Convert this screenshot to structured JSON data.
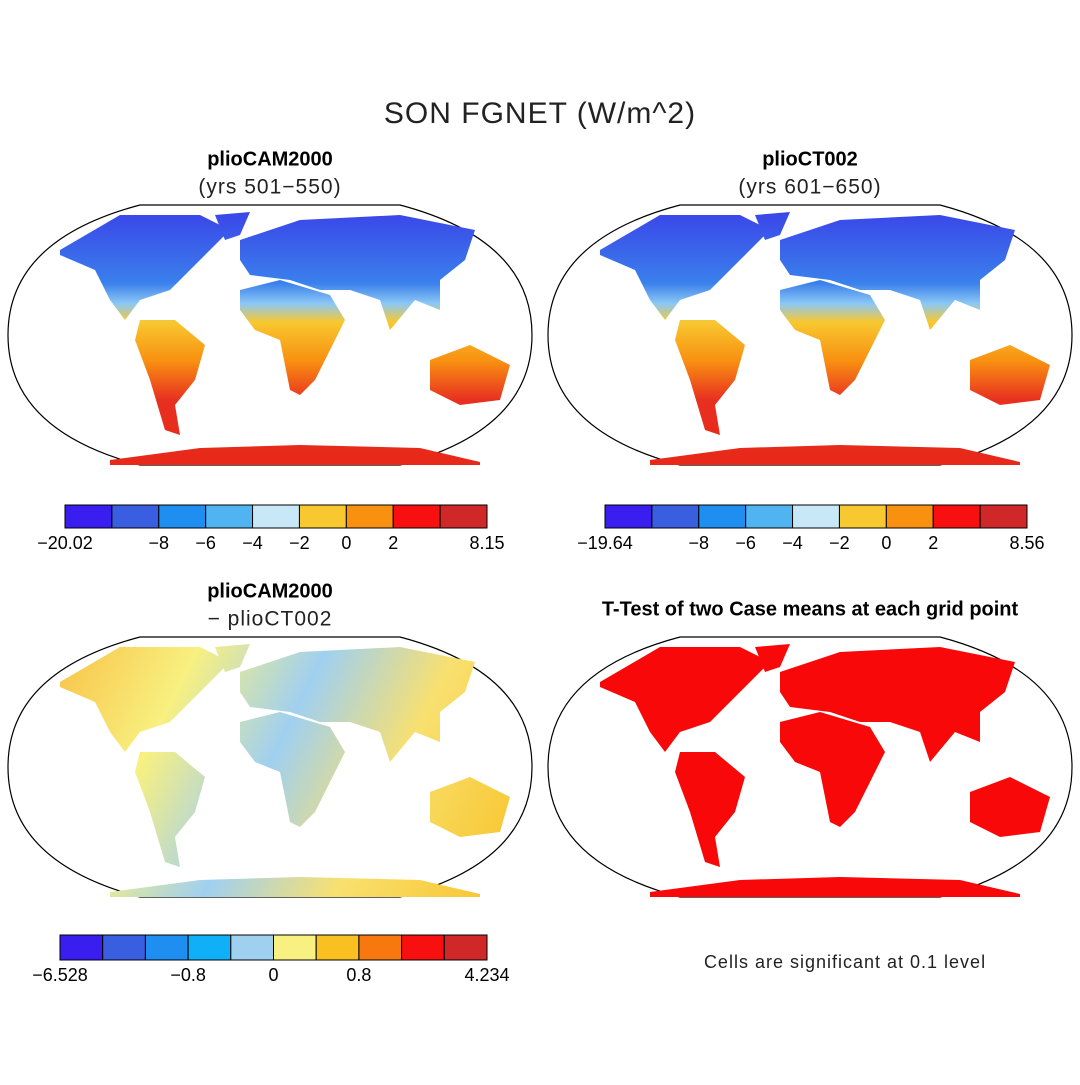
{
  "title": "SON FGNET (W/m^2)",
  "panels": [
    {
      "title": "plioCAM2000",
      "subtitle": "(yrs 501−550)",
      "colorbar": {
        "colors": [
          "#3a1ef0",
          "#3a5ee0",
          "#1e8ef0",
          "#50b4f0",
          "#c8e8f8",
          "#f8c830",
          "#f89010",
          "#f81010",
          "#d02828"
        ],
        "labels": [
          "−20.02",
          null,
          "−8",
          "−6",
          "−4",
          "−2",
          "0",
          "2",
          null,
          "8.15"
        ]
      }
    },
    {
      "title": "plioCT002",
      "subtitle": "(yrs 601−650)",
      "colorbar": {
        "colors": [
          "#3a1ef0",
          "#3a5ee0",
          "#1e8ef0",
          "#50b4f0",
          "#c8e8f8",
          "#f8c830",
          "#f89010",
          "#f81010",
          "#d02828"
        ],
        "labels": [
          "−19.64",
          null,
          "−8",
          "−6",
          "−4",
          "−2",
          "0",
          "2",
          null,
          "8.56"
        ]
      }
    },
    {
      "title": "plioCAM2000",
      "subtitle": "− plioCT002",
      "colorbar": {
        "colors": [
          "#3a1ef0",
          "#3a5ee0",
          "#1e8ef0",
          "#10b0f8",
          "#a0d0f0",
          "#f8f080",
          "#f8c020",
          "#f87810",
          "#f81010",
          "#d02828"
        ],
        "labels": [
          "−6.528",
          null,
          null,
          "−0.8",
          null,
          "0",
          null,
          "0.8",
          null,
          null,
          "4.234"
        ]
      }
    },
    {
      "title": "T-Test of two Case means at each grid point",
      "note": "Cells are significant at 0.1 level"
    }
  ]
}
